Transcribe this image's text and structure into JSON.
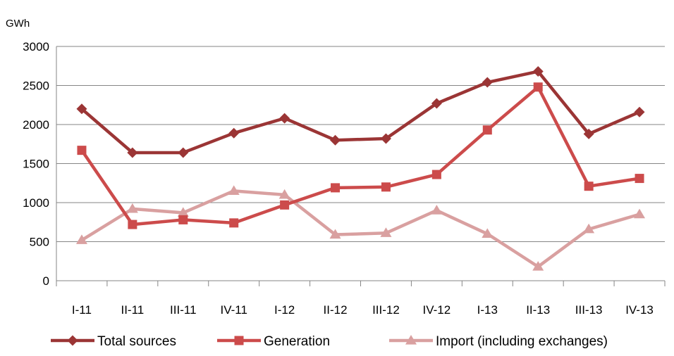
{
  "chart_data": {
    "type": "line",
    "ylabel": "GWh",
    "xlabel": "",
    "ylim": [
      0,
      3000
    ],
    "yticks": [
      0,
      500,
      1000,
      1500,
      2000,
      2500,
      3000
    ],
    "grid": true,
    "legend_position": "bottom",
    "categories": [
      "I-11",
      "II-11",
      "III-11",
      "IV-11",
      "I-12",
      "II-12",
      "III-12",
      "IV-12",
      "I-13",
      "II-13",
      "III-13",
      "IV-13"
    ],
    "series": [
      {
        "name": "Total sources",
        "marker": "diamond",
        "color": "#9B3535",
        "values": [
          2200,
          1640,
          1640,
          1890,
          2080,
          1800,
          1820,
          2270,
          2540,
          2680,
          1880,
          2160
        ]
      },
      {
        "name": "Generation",
        "marker": "square",
        "color": "#CC4B4B",
        "values": [
          1670,
          720,
          780,
          740,
          970,
          1190,
          1200,
          1360,
          1930,
          2480,
          1210,
          1310
        ]
      },
      {
        "name": "Import (including exchanges)",
        "marker": "triangle",
        "color": "#D9A0A0",
        "values": [
          520,
          920,
          870,
          1150,
          1100,
          590,
          610,
          900,
          600,
          180,
          660,
          850
        ]
      }
    ]
  }
}
